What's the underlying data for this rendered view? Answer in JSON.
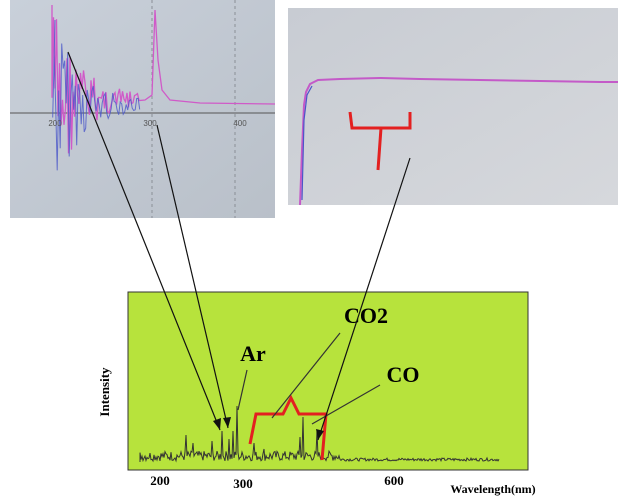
{
  "left_photo": {
    "x_tick_labels": [
      "200",
      "300",
      "400"
    ]
  },
  "spectrum": {
    "y_axis_label": "Intensity",
    "x_axis_label": "Wavelength(nm)",
    "x_tick_labels": [
      "200",
      "300",
      "600"
    ],
    "annotations": [
      "Ar",
      "CO2",
      "CO"
    ]
  }
}
